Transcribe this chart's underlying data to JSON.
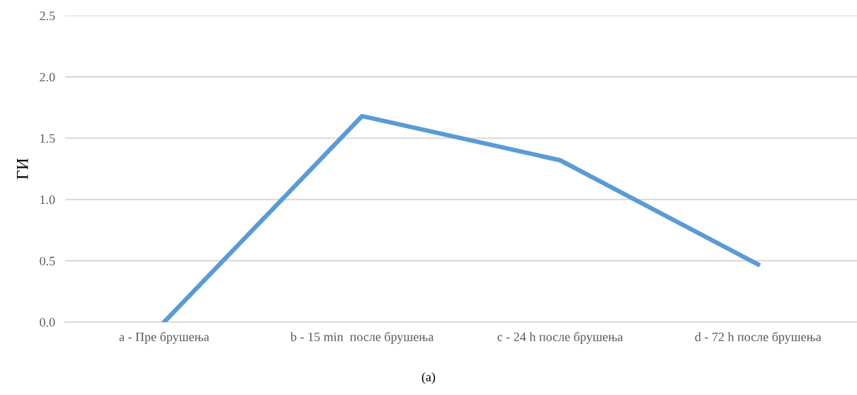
{
  "chart_data": {
    "type": "line",
    "ylabel": "ГИ",
    "categories": [
      "a - Пре брушења",
      "b - 15 min  после брушења",
      "c - 24 h после брушења",
      "d - 72 h после брушења"
    ],
    "series": [
      {
        "color": "#5b9bd5",
        "values": [
          0.0,
          1.68,
          1.32,
          0.47
        ]
      }
    ],
    "ylim": [
      0,
      2.5
    ],
    "yticks": [
      {
        "value": 0,
        "label": "0.0"
      },
      {
        "value": 0.5,
        "label": "0.5"
      },
      {
        "value": 1.0,
        "label": "1.0"
      },
      {
        "value": 1.5,
        "label": "1.5"
      },
      {
        "value": 2.0,
        "label": "2.0"
      },
      {
        "value": 2.5,
        "label": "2.5"
      }
    ],
    "grid": "y",
    "marker": "none",
    "line_style": "solid",
    "annotations": [
      "(a)"
    ]
  }
}
